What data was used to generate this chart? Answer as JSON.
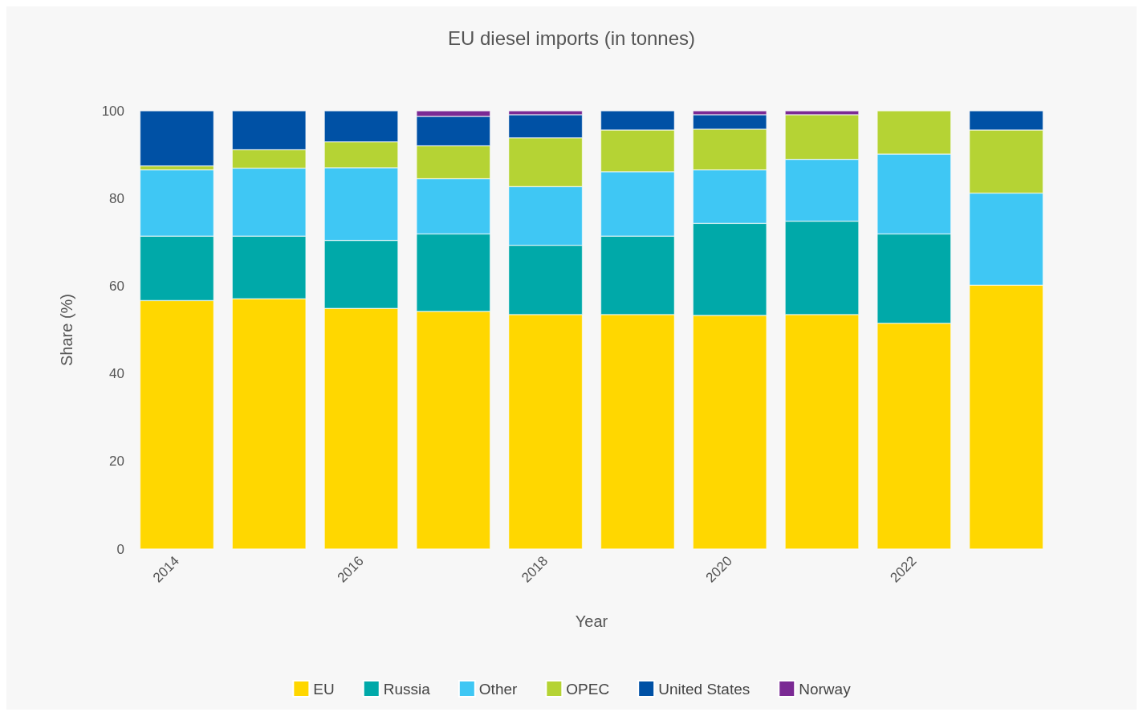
{
  "chart_data": {
    "type": "bar",
    "title": "EU diesel imports (in tonnes)",
    "xlabel": "Year",
    "ylabel": "Share (%)",
    "categories": [
      "2014",
      null,
      "2016",
      null,
      "2018",
      null,
      "2020",
      null,
      "2022",
      null
    ],
    "stacked": true,
    "ylim": [
      0,
      100
    ],
    "yticks": [
      0,
      20,
      40,
      60,
      80,
      100
    ],
    "grid": false,
    "legend": "bottom",
    "series": [
      {
        "name": "EU",
        "color": "#ffd700",
        "values": [
          56.7,
          57.1,
          54.9,
          54.2,
          53.5,
          53.5,
          53.3,
          53.5,
          51.5,
          60.2
        ]
      },
      {
        "name": "Russia",
        "color": "#00a9a9",
        "values": [
          14.7,
          14.3,
          15.5,
          17.7,
          15.8,
          17.9,
          21.0,
          21.3,
          20.4,
          null
        ]
      },
      {
        "name": "Other",
        "color": "#3fc7f4",
        "values": [
          15.1,
          15.5,
          16.6,
          12.6,
          13.4,
          14.7,
          12.2,
          14.1,
          18.2,
          21.0
        ]
      },
      {
        "name": "OPEC",
        "color": "#b5d334",
        "values": [
          0.9,
          4.2,
          5.9,
          7.5,
          11.1,
          9.5,
          9.3,
          10.2,
          9.9,
          14.4
        ]
      },
      {
        "name": "United States",
        "color": "#0051a5",
        "values": [
          12.6,
          8.9,
          7.1,
          6.7,
          5.3,
          4.4,
          3.3,
          null,
          null,
          4.4
        ]
      },
      {
        "name": "Norway",
        "color": "#7b2a94",
        "values": [
          null,
          null,
          null,
          1.3,
          0.9,
          null,
          0.9,
          0.9,
          null,
          null
        ]
      }
    ]
  }
}
